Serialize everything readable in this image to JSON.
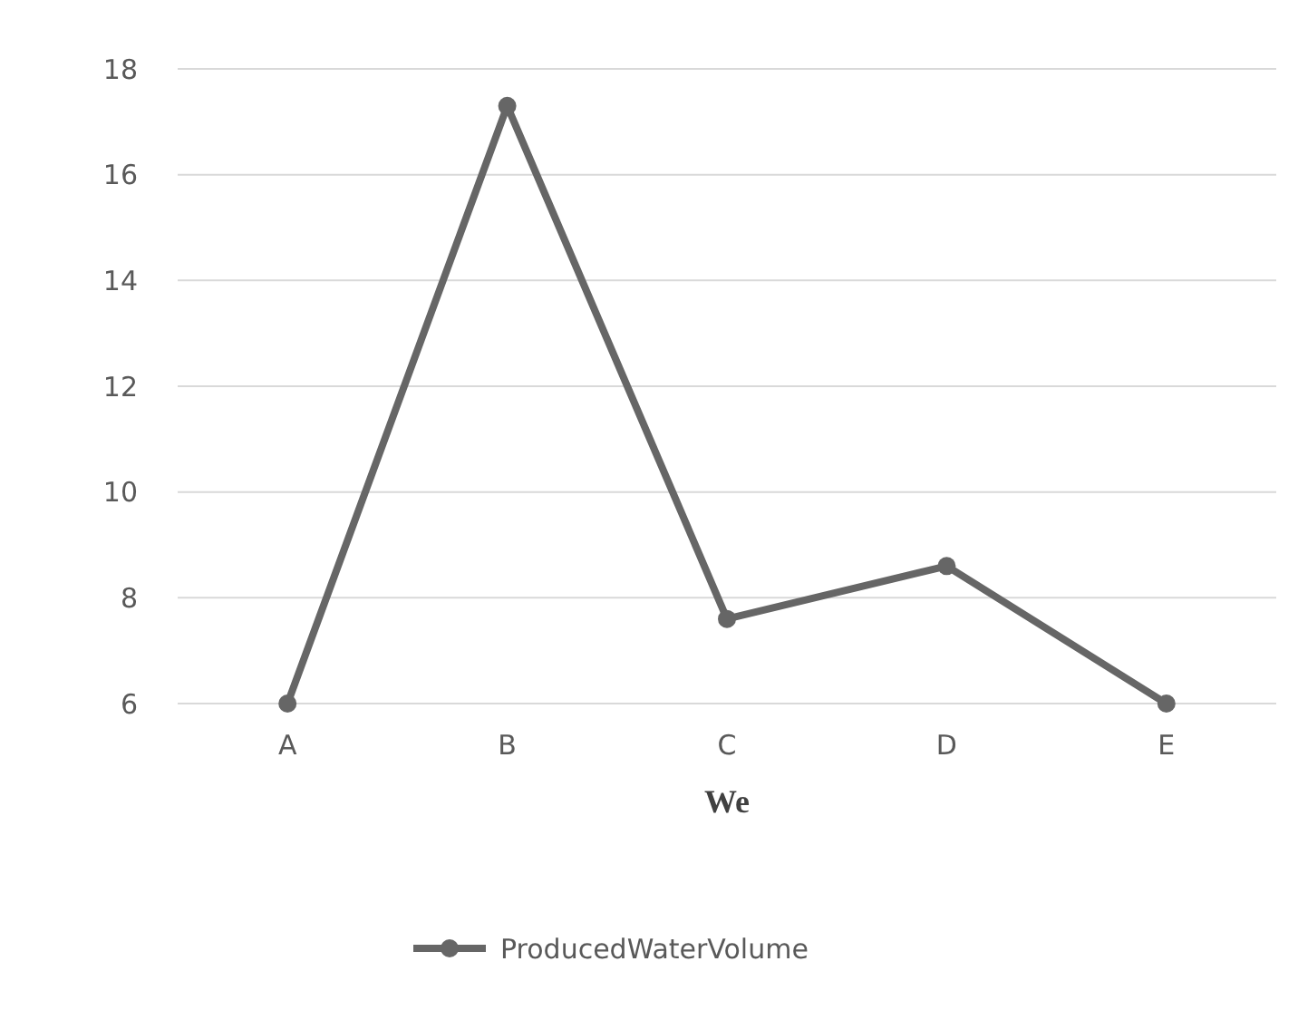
{
  "chart_data": {
    "type": "line",
    "xlabel": "We",
    "categories": [
      "A",
      "B",
      "C",
      "D",
      "E"
    ],
    "series": [
      {
        "name": "ProducedWaterVolume",
        "color": "#666666",
        "values": [
          6,
          17.3,
          7.6,
          8.6,
          6
        ]
      }
    ],
    "ylim": [
      6,
      18
    ],
    "yticks": [
      6,
      8,
      10,
      12,
      14,
      16,
      18
    ],
    "grid": "y",
    "legend": "bottom",
    "marker": "circle",
    "line_style": "solid"
  }
}
